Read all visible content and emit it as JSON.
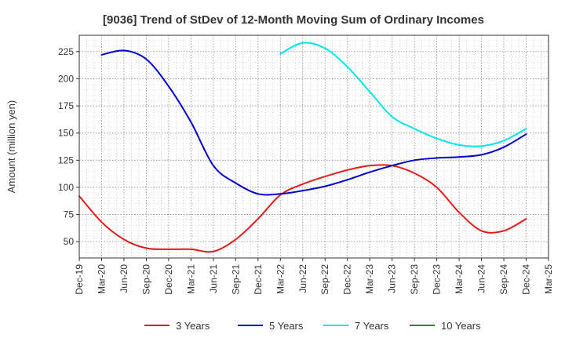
{
  "chart_data": {
    "type": "line",
    "title": "[9036]  Trend of StDev of 12-Month Moving Sum of Ordinary Incomes",
    "ylabel": "Amount (million yen)",
    "xlabel": "",
    "ylim": [
      35,
      240
    ],
    "yticks": [
      50,
      75,
      100,
      125,
      150,
      175,
      200,
      225
    ],
    "xticks": [
      "Dec-19",
      "Mar-20",
      "Jun-20",
      "Sep-20",
      "Dec-20",
      "Mar-21",
      "Jun-21",
      "Sep-21",
      "Dec-21",
      "Mar-22",
      "Jun-22",
      "Sep-22",
      "Dec-22",
      "Mar-23",
      "Jun-23",
      "Sep-23",
      "Dec-23",
      "Mar-24",
      "Jun-24",
      "Sep-24",
      "Dec-24",
      "Mar-25"
    ],
    "grid": true,
    "legend_position": "bottom",
    "series": [
      {
        "name": "3 Years",
        "color": "#e31a1c",
        "values": [
          [
            "Dec-19",
            92
          ],
          [
            "Mar-20",
            68
          ],
          [
            "Jun-20",
            52
          ],
          [
            "Sep-20",
            44
          ],
          [
            "Dec-20",
            43
          ],
          [
            "Mar-21",
            43
          ],
          [
            "Jun-21",
            41
          ],
          [
            "Sep-21",
            52
          ],
          [
            "Dec-21",
            71
          ],
          [
            "Mar-22",
            93
          ],
          [
            "Jun-22",
            103
          ],
          [
            "Sep-22",
            110
          ],
          [
            "Dec-22",
            116
          ],
          [
            "Mar-23",
            120
          ],
          [
            "Jun-23",
            120
          ],
          [
            "Sep-23",
            113
          ],
          [
            "Dec-23",
            100
          ],
          [
            "Mar-24",
            77
          ],
          [
            "Jun-24",
            60
          ],
          [
            "Sep-24",
            60
          ],
          [
            "Dec-24",
            71
          ]
        ]
      },
      {
        "name": "5 Years",
        "color": "#0000cc",
        "values": [
          [
            "Mar-20",
            222
          ],
          [
            "Jun-20",
            226
          ],
          [
            "Sep-20",
            218
          ],
          [
            "Dec-20",
            193
          ],
          [
            "Mar-21",
            160
          ],
          [
            "Jun-21",
            120
          ],
          [
            "Sep-21",
            104
          ],
          [
            "Dec-21",
            94
          ],
          [
            "Mar-22",
            94
          ],
          [
            "Jun-22",
            97
          ],
          [
            "Sep-22",
            101
          ],
          [
            "Dec-22",
            107
          ],
          [
            "Mar-23",
            114
          ],
          [
            "Jun-23",
            120
          ],
          [
            "Sep-23",
            125
          ],
          [
            "Dec-23",
            127
          ],
          [
            "Mar-24",
            128
          ],
          [
            "Jun-24",
            130
          ],
          [
            "Sep-24",
            137
          ],
          [
            "Dec-24",
            149
          ]
        ]
      },
      {
        "name": "7 Years",
        "color": "#00e5ee",
        "values": [
          [
            "Mar-22",
            223
          ],
          [
            "Jun-22",
            233
          ],
          [
            "Sep-22",
            228
          ],
          [
            "Dec-22",
            211
          ],
          [
            "Mar-23",
            188
          ],
          [
            "Jun-23",
            165
          ],
          [
            "Sep-23",
            154
          ],
          [
            "Dec-23",
            145
          ],
          [
            "Mar-24",
            139
          ],
          [
            "Jun-24",
            138
          ],
          [
            "Sep-24",
            143
          ],
          [
            "Dec-24",
            154
          ]
        ]
      },
      {
        "name": "10 Years",
        "color": "#228b22",
        "values": []
      }
    ]
  }
}
